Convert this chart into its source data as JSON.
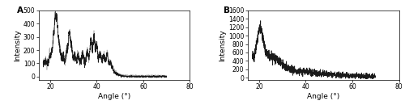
{
  "panel_A": {
    "label": "A",
    "xlabel": "Angle (°)",
    "ylabel": "Intensity",
    "xlim": [
      15,
      80
    ],
    "ylim": [
      -25,
      500
    ],
    "xticks": [
      20,
      40,
      60,
      80
    ],
    "yticks": [
      0,
      100,
      200,
      300,
      400,
      500
    ],
    "seed": 42,
    "x_start": 17.0,
    "x_end": 70.0,
    "n_points": 1500
  },
  "panel_B": {
    "label": "B",
    "xlabel": "Angle (°)",
    "ylabel": "Intensity",
    "xlim": [
      15,
      80
    ],
    "ylim": [
      -50,
      1600
    ],
    "xticks": [
      20,
      40,
      60,
      80
    ],
    "yticks": [
      0,
      200,
      400,
      600,
      800,
      1000,
      1200,
      1400,
      1600
    ],
    "seed": 7,
    "x_start": 17.0,
    "x_end": 70.0,
    "n_points": 1500
  },
  "line_color": "#1a1a1a",
  "line_color2": "#aaaaaa",
  "background_color": "#ffffff",
  "tick_fontsize": 5.5,
  "label_fontsize": 6.5,
  "panel_label_fontsize": 7.5,
  "line_width": 0.5
}
